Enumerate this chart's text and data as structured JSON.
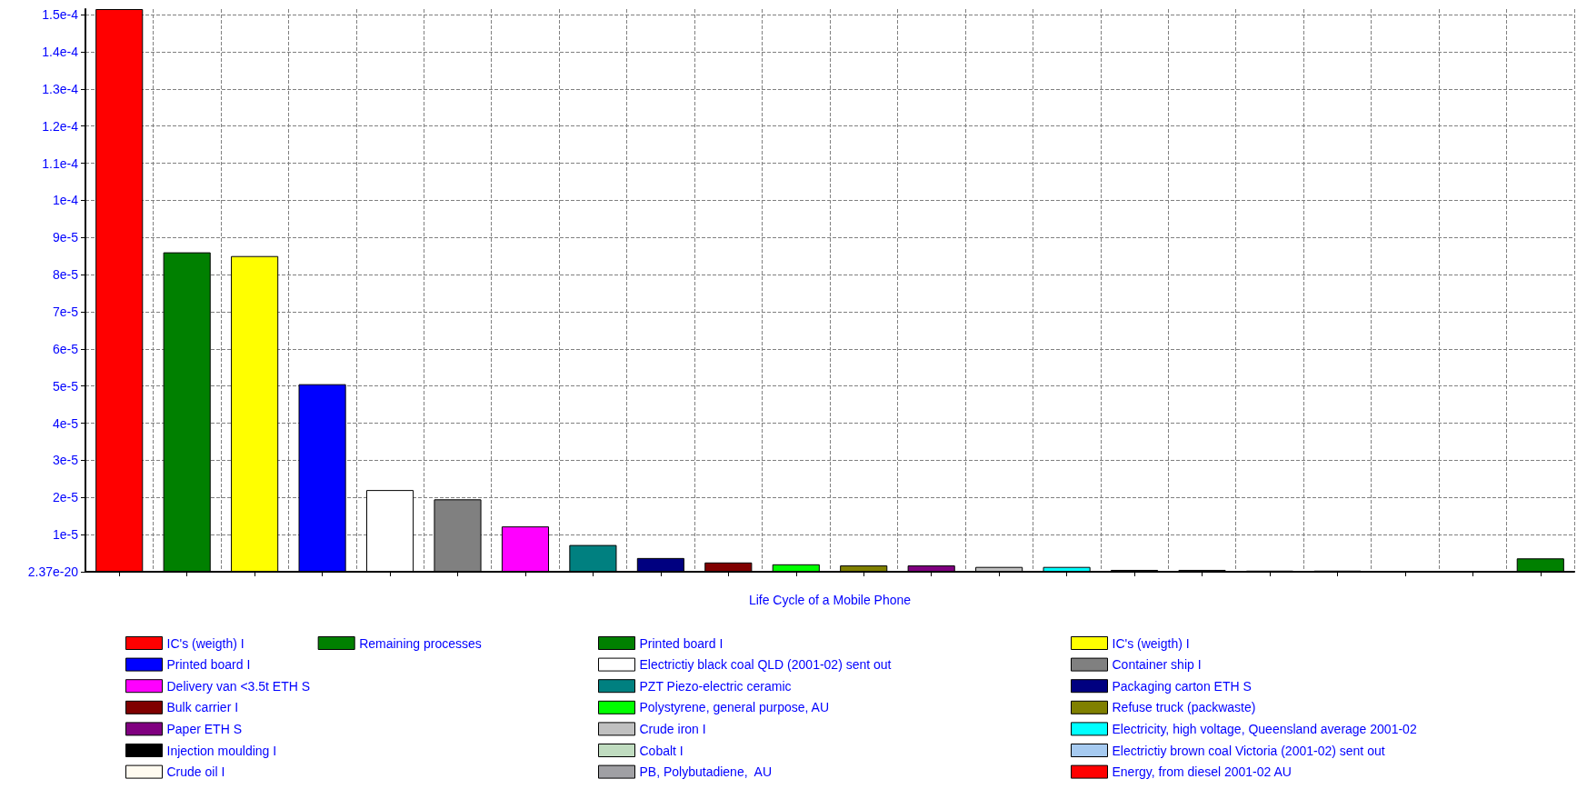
{
  "chart_data": {
    "type": "bar",
    "xlabel": "Life Cycle of a Mobile Phone",
    "categories": [
      null,
      null,
      null,
      null,
      null,
      null,
      null,
      null,
      null,
      null,
      null,
      null,
      null,
      null,
      null,
      null,
      null,
      null,
      null,
      null,
      null,
      null
    ],
    "ylim": [
      0,
      0.0001515
    ],
    "yticks": [
      {
        "value": 0,
        "label": "2.37e-20"
      },
      {
        "value": 1e-05,
        "label": "1e-5"
      },
      {
        "value": 2e-05,
        "label": "2e-5"
      },
      {
        "value": 3e-05,
        "label": "3e-5"
      },
      {
        "value": 4e-05,
        "label": "4e-5"
      },
      {
        "value": 5e-05,
        "label": "5e-5"
      },
      {
        "value": 6e-05,
        "label": "6e-5"
      },
      {
        "value": 7e-05,
        "label": "7e-5"
      },
      {
        "value": 8e-05,
        "label": "8e-5"
      },
      {
        "value": 9e-05,
        "label": "9e-5"
      },
      {
        "value": 0.0001,
        "label": "1e-4"
      },
      {
        "value": 0.00011,
        "label": "1.1e-4"
      },
      {
        "value": 0.00012,
        "label": "1.2e-4"
      },
      {
        "value": 0.00013,
        "label": "1.3e-4"
      },
      {
        "value": 0.00014,
        "label": "1.4e-4"
      },
      {
        "value": 0.00015,
        "label": "1.5e-4"
      }
    ],
    "grid": true,
    "legend": "bottom",
    "series": [
      {
        "name": "IC's (weigth) I",
        "color": "#ff0000",
        "values": [
          0.0001515,
          null,
          null,
          null,
          null,
          null,
          null,
          null,
          null,
          null,
          null,
          null,
          null,
          null,
          null,
          null,
          null,
          null,
          null,
          null,
          null,
          null
        ]
      },
      {
        "name": "Printed board I",
        "color": "#008000",
        "values": [
          null,
          8.6e-05,
          null,
          null,
          null,
          null,
          null,
          null,
          null,
          null,
          null,
          null,
          null,
          null,
          null,
          null,
          null,
          null,
          null,
          null,
          null,
          null
        ]
      },
      {
        "name": "IC's (weigth) I",
        "color": "#ffff00",
        "values": [
          null,
          null,
          8.5e-05,
          null,
          null,
          null,
          null,
          null,
          null,
          null,
          null,
          null,
          null,
          null,
          null,
          null,
          null,
          null,
          null,
          null,
          null,
          null
        ]
      },
      {
        "name": "Printed board I",
        "color": "#0000ff",
        "values": [
          null,
          null,
          null,
          5.05e-05,
          null,
          null,
          null,
          null,
          null,
          null,
          null,
          null,
          null,
          null,
          null,
          null,
          null,
          null,
          null,
          null,
          null,
          null
        ]
      },
      {
        "name": "Electrictiy black coal QLD (2001-02) sent out",
        "color": "#ffffff",
        "values": [
          null,
          null,
          null,
          null,
          2.2e-05,
          null,
          null,
          null,
          null,
          null,
          null,
          null,
          null,
          null,
          null,
          null,
          null,
          null,
          null,
          null,
          null,
          null
        ]
      },
      {
        "name": "Container ship I",
        "color": "#808080",
        "values": [
          null,
          null,
          null,
          null,
          null,
          1.95e-05,
          null,
          null,
          null,
          null,
          null,
          null,
          null,
          null,
          null,
          null,
          null,
          null,
          null,
          null,
          null,
          null
        ]
      },
      {
        "name": "Delivery van <3.5t ETH S",
        "color": "#ff00ff",
        "values": [
          null,
          null,
          null,
          null,
          null,
          null,
          1.22e-05,
          null,
          null,
          null,
          null,
          null,
          null,
          null,
          null,
          null,
          null,
          null,
          null,
          null,
          null,
          null
        ]
      },
      {
        "name": "PZT Piezo-electric ceramic",
        "color": "#008080",
        "values": [
          null,
          null,
          null,
          null,
          null,
          null,
          null,
          7.2e-06,
          null,
          null,
          null,
          null,
          null,
          null,
          null,
          null,
          null,
          null,
          null,
          null,
          null,
          null
        ]
      },
      {
        "name": "Packaging carton ETH S",
        "color": "#000080",
        "values": [
          null,
          null,
          null,
          null,
          null,
          null,
          null,
          null,
          3.7e-06,
          null,
          null,
          null,
          null,
          null,
          null,
          null,
          null,
          null,
          null,
          null,
          null,
          null
        ]
      },
      {
        "name": "Bulk carrier I",
        "color": "#800000",
        "values": [
          null,
          null,
          null,
          null,
          null,
          null,
          null,
          null,
          null,
          2.5e-06,
          null,
          null,
          null,
          null,
          null,
          null,
          null,
          null,
          null,
          null,
          null,
          null
        ]
      },
      {
        "name": "Polystyrene, general purpose, AU",
        "color": "#00ff00",
        "values": [
          null,
          null,
          null,
          null,
          null,
          null,
          null,
          null,
          null,
          null,
          2e-06,
          null,
          null,
          null,
          null,
          null,
          null,
          null,
          null,
          null,
          null,
          null
        ]
      },
      {
        "name": "Refuse truck (packwaste)",
        "color": "#808000",
        "values": [
          null,
          null,
          null,
          null,
          null,
          null,
          null,
          null,
          null,
          null,
          null,
          1.7e-06,
          null,
          null,
          null,
          null,
          null,
          null,
          null,
          null,
          null,
          null
        ]
      },
      {
        "name": "Paper ETH S",
        "color": "#800080",
        "values": [
          null,
          null,
          null,
          null,
          null,
          null,
          null,
          null,
          null,
          null,
          null,
          null,
          1.7e-06,
          null,
          null,
          null,
          null,
          null,
          null,
          null,
          null,
          null
        ]
      },
      {
        "name": "Crude iron I",
        "color": "#c0c0c0",
        "values": [
          null,
          null,
          null,
          null,
          null,
          null,
          null,
          null,
          null,
          null,
          null,
          null,
          null,
          1.3e-06,
          null,
          null,
          null,
          null,
          null,
          null,
          null,
          null
        ]
      },
      {
        "name": "Electricity, high voltage, Queensland average 2001-02",
        "color": "#00ffff",
        "values": [
          null,
          null,
          null,
          null,
          null,
          null,
          null,
          null,
          null,
          null,
          null,
          null,
          null,
          null,
          1.3e-06,
          null,
          null,
          null,
          null,
          null,
          null,
          null
        ]
      },
      {
        "name": "Injection moulding I",
        "color": "#000000",
        "values": [
          null,
          null,
          null,
          null,
          null,
          null,
          null,
          null,
          null,
          null,
          null,
          null,
          null,
          null,
          null,
          5e-07,
          null,
          null,
          null,
          null,
          null,
          null
        ]
      },
      {
        "name": "Cobalt I",
        "color": "#c0dcc0",
        "values": [
          null,
          null,
          null,
          null,
          null,
          null,
          null,
          null,
          null,
          null,
          null,
          null,
          null,
          null,
          null,
          null,
          5e-07,
          null,
          null,
          null,
          null,
          null
        ]
      },
      {
        "name": "Electrictiy brown coal Victoria (2001-02) sent out",
        "color": "#a6caf0",
        "values": [
          null,
          null,
          null,
          null,
          null,
          null,
          null,
          null,
          null,
          null,
          null,
          null,
          null,
          null,
          null,
          null,
          null,
          3e-07,
          null,
          null,
          null,
          null
        ]
      },
      {
        "name": "Crude oil I",
        "color": "#fffbf0",
        "values": [
          null,
          null,
          null,
          null,
          null,
          null,
          null,
          null,
          null,
          null,
          null,
          null,
          null,
          null,
          null,
          null,
          null,
          null,
          3e-07,
          null,
          null,
          null
        ]
      },
      {
        "name": "PB, Polybutadiene,  AU",
        "color": "#a0a0a4",
        "values": [
          null,
          null,
          null,
          null,
          null,
          null,
          null,
          null,
          null,
          null,
          null,
          null,
          null,
          null,
          null,
          null,
          null,
          null,
          null,
          0,
          null,
          null
        ]
      },
      {
        "name": "Energy, from diesel 2001-02 AU",
        "color": "#ff0000",
        "values": [
          null,
          null,
          null,
          null,
          null,
          null,
          null,
          null,
          null,
          null,
          null,
          null,
          null,
          null,
          null,
          null,
          null,
          null,
          null,
          null,
          0,
          null
        ]
      },
      {
        "name": "Remaining processes",
        "color": "#008000",
        "values": [
          null,
          null,
          null,
          null,
          null,
          null,
          null,
          null,
          null,
          null,
          null,
          null,
          null,
          null,
          null,
          null,
          null,
          null,
          null,
          null,
          null,
          3.6e-06
        ]
      }
    ]
  }
}
